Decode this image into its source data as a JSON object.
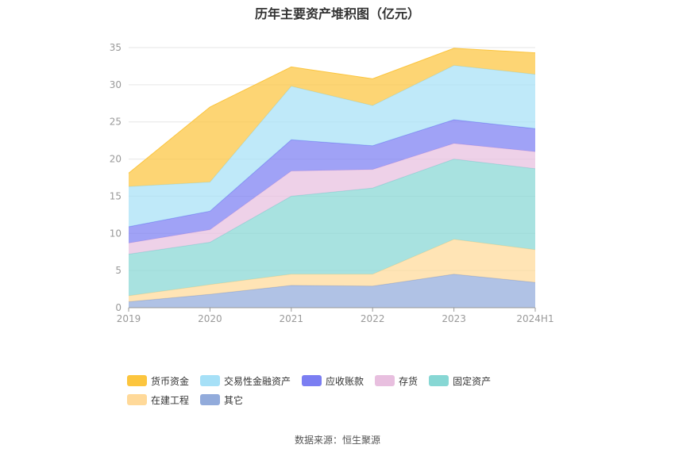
{
  "chart_data": {
    "type": "area",
    "stacked": true,
    "title": "历年主要资产堆积图（亿元）",
    "categories": [
      "2019",
      "2020",
      "2021",
      "2022",
      "2023",
      "2024H1"
    ],
    "y_ticks": [
      "0",
      "5",
      "10",
      "15",
      "20",
      "25",
      "30",
      "35"
    ],
    "ylim": [
      0,
      35
    ],
    "grid": true,
    "legend_position": "bottom",
    "series": [
      {
        "name": "其它",
        "color": "#92abdb",
        "values": [
          0.8,
          1.8,
          3.0,
          2.9,
          4.5,
          3.4
        ]
      },
      {
        "name": "在建工程",
        "color": "#ffd999",
        "values": [
          0.8,
          1.3,
          1.5,
          1.6,
          4.7,
          4.4
        ]
      },
      {
        "name": "固定资产",
        "color": "#87d7d4",
        "values": [
          5.6,
          5.7,
          10.5,
          11.6,
          10.8,
          10.9
        ]
      },
      {
        "name": "存货",
        "color": "#e8bfdf",
        "values": [
          1.5,
          1.7,
          3.4,
          2.5,
          2.1,
          2.3
        ]
      },
      {
        "name": "应收账款",
        "color": "#7b7ef2",
        "values": [
          2.2,
          2.5,
          4.2,
          3.2,
          3.2,
          3.1
        ]
      },
      {
        "name": "交易性金融资产",
        "color": "#a6e0f7",
        "values": [
          5.4,
          3.9,
          7.2,
          5.4,
          7.3,
          7.3
        ]
      },
      {
        "name": "货币资金",
        "color": "#fcc53e",
        "values": [
          1.8,
          10.1,
          2.6,
          3.6,
          2.3,
          2.9
        ]
      }
    ]
  },
  "legend_order": [
    "货币资金",
    "交易性金融资产",
    "应收账款",
    "存货",
    "固定资产",
    "在建工程",
    "其它"
  ],
  "source": "数据来源：恒生聚源"
}
